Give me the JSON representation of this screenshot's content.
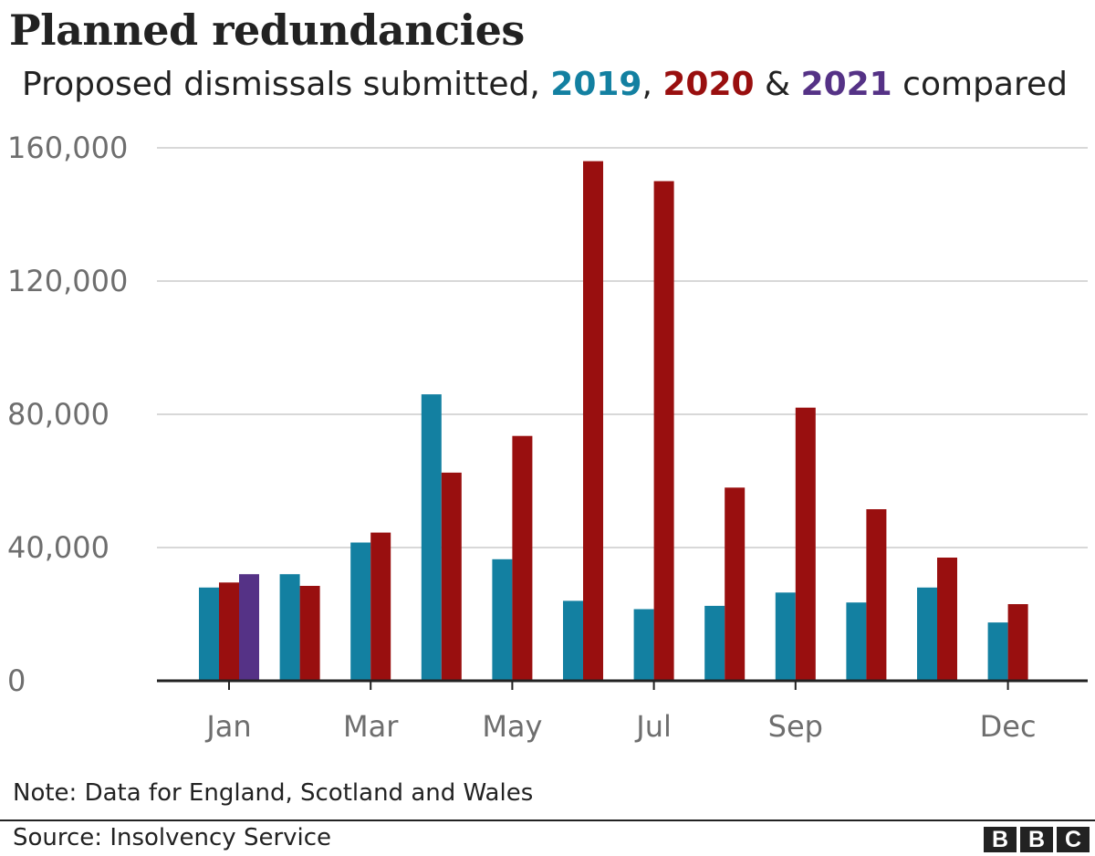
{
  "header": {
    "title": "Planned redundancies",
    "subtitle_prefix": "Proposed dismissals submitted, ",
    "subtitle_2019": "2019",
    "subtitle_sep1": ", ",
    "subtitle_2020": "2020",
    "subtitle_sep2": " & ",
    "subtitle_2021": "2021",
    "subtitle_suffix": " compared"
  },
  "chart_data": {
    "type": "bar",
    "categories": [
      "Jan",
      "Feb",
      "Mar",
      "Apr",
      "May",
      "Jun",
      "Jul",
      "Aug",
      "Sep",
      "Oct",
      "Nov",
      "Dec"
    ],
    "x_tick_labels": [
      "Jan",
      "",
      "Mar",
      "",
      "May",
      "",
      "Jul",
      "",
      "Sep",
      "",
      "",
      "Dec"
    ],
    "series": [
      {
        "name": "2019",
        "color": "#1380a1",
        "values": [
          28000,
          32000,
          41500,
          86000,
          36500,
          24000,
          21500,
          22500,
          26500,
          23500,
          28000,
          17500
        ]
      },
      {
        "name": "2020",
        "color": "#990f0f",
        "values": [
          29500,
          28500,
          44500,
          62500,
          73500,
          156000,
          150000,
          58000,
          82000,
          51500,
          37000,
          23000
        ]
      },
      {
        "name": "2021",
        "color": "#553286",
        "values": [
          32000,
          null,
          null,
          null,
          null,
          null,
          null,
          null,
          null,
          null,
          null,
          null
        ]
      }
    ],
    "ylim": [
      0,
      160000
    ],
    "y_ticks": [
      0,
      40000,
      80000,
      120000,
      160000
    ],
    "y_tick_labels": [
      "0",
      "40,000",
      "80,000",
      "120,000",
      "160,000"
    ],
    "grid": true,
    "xlabel": "",
    "ylabel": ""
  },
  "footer": {
    "note": "Note: Data for England, Scotland and Wales",
    "source": "Source: Insolvency Service",
    "logo_letters": [
      "B",
      "B",
      "C"
    ]
  }
}
